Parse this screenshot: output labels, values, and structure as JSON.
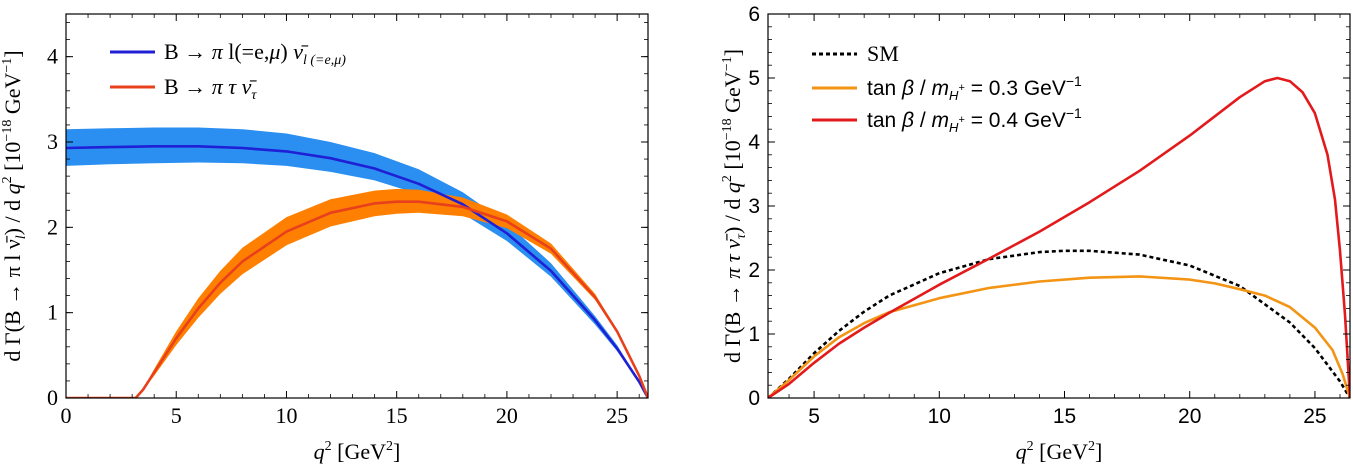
{
  "chart_data": [
    {
      "type": "line",
      "xlabel": "q² [GeV²]",
      "ylabel": "d Γ(B → π l ν̄ₗ) / d q² [10⁻¹⁸ GeV⁻¹]",
      "xlim": [
        0,
        26.4
      ],
      "ylim": [
        0,
        4.5
      ],
      "xticks": [
        "0",
        "5",
        "10",
        "15",
        "20",
        "25"
      ],
      "yticks": [
        "0",
        "1",
        "2",
        "3",
        "4"
      ],
      "series": [
        {
          "name": "B → π l(=e,μ) ν̄ₗ₍₌ₑ,μ₎",
          "color": "#1f1fd6",
          "band_color": "#2a8ff0",
          "x": [
            0,
            2,
            4,
            6,
            8,
            10,
            12,
            14,
            16,
            18,
            20,
            22,
            24,
            25,
            26,
            26.4
          ],
          "y": [
            2.93,
            2.94,
            2.95,
            2.95,
            2.93,
            2.89,
            2.81,
            2.69,
            2.51,
            2.27,
            1.93,
            1.49,
            0.91,
            0.58,
            0.19,
            0
          ],
          "band_lower": [
            2.72,
            2.74,
            2.75,
            2.76,
            2.75,
            2.72,
            2.65,
            2.55,
            2.39,
            2.16,
            1.84,
            1.42,
            0.86,
            0.55,
            0.18,
            0
          ],
          "band_upper": [
            3.15,
            3.16,
            3.17,
            3.17,
            3.15,
            3.1,
            3.0,
            2.87,
            2.68,
            2.41,
            2.05,
            1.58,
            0.96,
            0.62,
            0.2,
            0
          ]
        },
        {
          "name": "B → π τ ν̄τ",
          "color": "#e8401c",
          "band_color": "#ff8000",
          "x": [
            0,
            3.16,
            3.5,
            4,
            5,
            6,
            7,
            8,
            10,
            12,
            14,
            15,
            16,
            18,
            20,
            22,
            24,
            25,
            26,
            26.4
          ],
          "y": [
            0,
            0,
            0.1,
            0.3,
            0.7,
            1.05,
            1.35,
            1.6,
            1.95,
            2.17,
            2.28,
            2.3,
            2.3,
            2.24,
            2.07,
            1.75,
            1.18,
            0.78,
            0.26,
            0
          ],
          "band_lower": [
            0,
            0,
            0.09,
            0.26,
            0.62,
            0.94,
            1.22,
            1.45,
            1.79,
            2.01,
            2.13,
            2.16,
            2.17,
            2.13,
            1.99,
            1.69,
            1.15,
            0.76,
            0.25,
            0
          ],
          "band_upper": [
            0,
            0,
            0.11,
            0.34,
            0.78,
            1.17,
            1.49,
            1.76,
            2.12,
            2.33,
            2.43,
            2.45,
            2.44,
            2.35,
            2.15,
            1.81,
            1.22,
            0.8,
            0.27,
            0
          ]
        }
      ],
      "legend_position": "top-left",
      "grid": false
    },
    {
      "type": "line",
      "xlabel": "q² [GeV²]",
      "ylabel": "d Γ(B → π τ ν̄τ) / d q² [10⁻¹⁸ GeV⁻¹]",
      "xlim": [
        3.16,
        26.4
      ],
      "ylim": [
        0,
        6
      ],
      "xticks": [
        "5",
        "10",
        "15",
        "20",
        "25"
      ],
      "yticks": [
        "0",
        "1",
        "2",
        "3",
        "4",
        "5",
        "6"
      ],
      "series": [
        {
          "name": "SM",
          "color": "#000000",
          "dash": true,
          "x": [
            3.16,
            4,
            5,
            6,
            7,
            8,
            10,
            12,
            14,
            15,
            16,
            18,
            20,
            22,
            24,
            25,
            26,
            26.4
          ],
          "y": [
            0,
            0.3,
            0.7,
            1.05,
            1.35,
            1.6,
            1.95,
            2.17,
            2.28,
            2.3,
            2.3,
            2.24,
            2.07,
            1.75,
            1.18,
            0.78,
            0.26,
            0
          ]
        },
        {
          "name": "tan β / m_H⁺ = 0.3 GeV⁻¹",
          "color": "#f39415",
          "x": [
            3.16,
            4,
            5,
            6,
            7,
            8,
            10,
            12,
            14,
            16,
            18,
            20,
            21,
            22,
            23,
            24,
            25,
            25.7,
            26.1,
            26.4
          ],
          "y": [
            0,
            0.28,
            0.65,
            0.95,
            1.17,
            1.34,
            1.56,
            1.72,
            1.82,
            1.88,
            1.9,
            1.85,
            1.79,
            1.7,
            1.6,
            1.42,
            1.1,
            0.75,
            0.38,
            0
          ]
        },
        {
          "name": "tan β / m_H⁺ = 0.4 GeV⁻¹",
          "color": "#e31a1c",
          "x": [
            3.16,
            4,
            5,
            6,
            7,
            8,
            10,
            12,
            14,
            16,
            18,
            20,
            22,
            23,
            23.5,
            24,
            24.5,
            25,
            25.5,
            25.8,
            26,
            26.2,
            26.4
          ],
          "y": [
            0,
            0.22,
            0.55,
            0.85,
            1.1,
            1.33,
            1.77,
            2.18,
            2.6,
            3.06,
            3.55,
            4.1,
            4.7,
            4.95,
            5.0,
            4.95,
            4.78,
            4.45,
            3.8,
            3.1,
            2.3,
            1.3,
            0
          ]
        }
      ],
      "legend_position": "top-left",
      "grid": false
    }
  ]
}
